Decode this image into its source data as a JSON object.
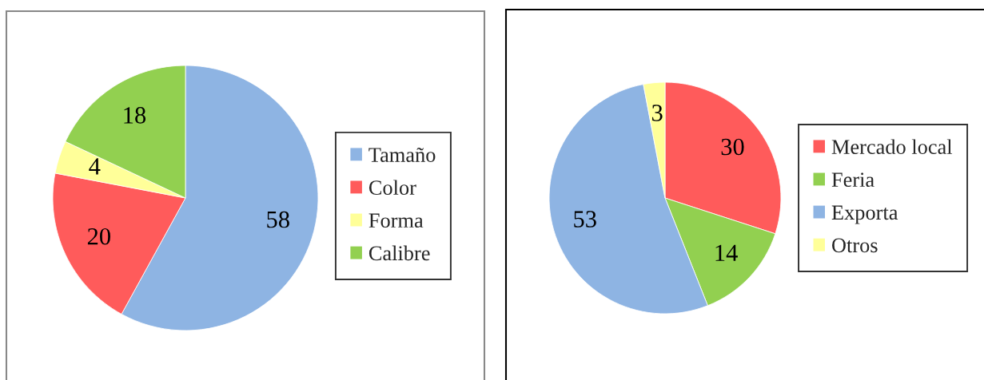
{
  "chart_data": [
    {
      "type": "pie",
      "categories": [
        "Tamaño",
        "Color",
        "Forma",
        "Calibre"
      ],
      "values": [
        58,
        20,
        4,
        18
      ],
      "colors": [
        "#8eb4e3",
        "#ff5b5b",
        "#ffff99",
        "#92d050"
      ],
      "data_labels": true,
      "legend": "right"
    },
    {
      "type": "pie",
      "categories": [
        "Mercado local",
        "Feria",
        "Exporta",
        "Otros"
      ],
      "values": [
        30,
        14,
        53,
        3
      ],
      "colors": [
        "#ff5b5b",
        "#92d050",
        "#8eb4e3",
        "#ffff99"
      ],
      "data_labels": true,
      "legend": "right"
    }
  ]
}
